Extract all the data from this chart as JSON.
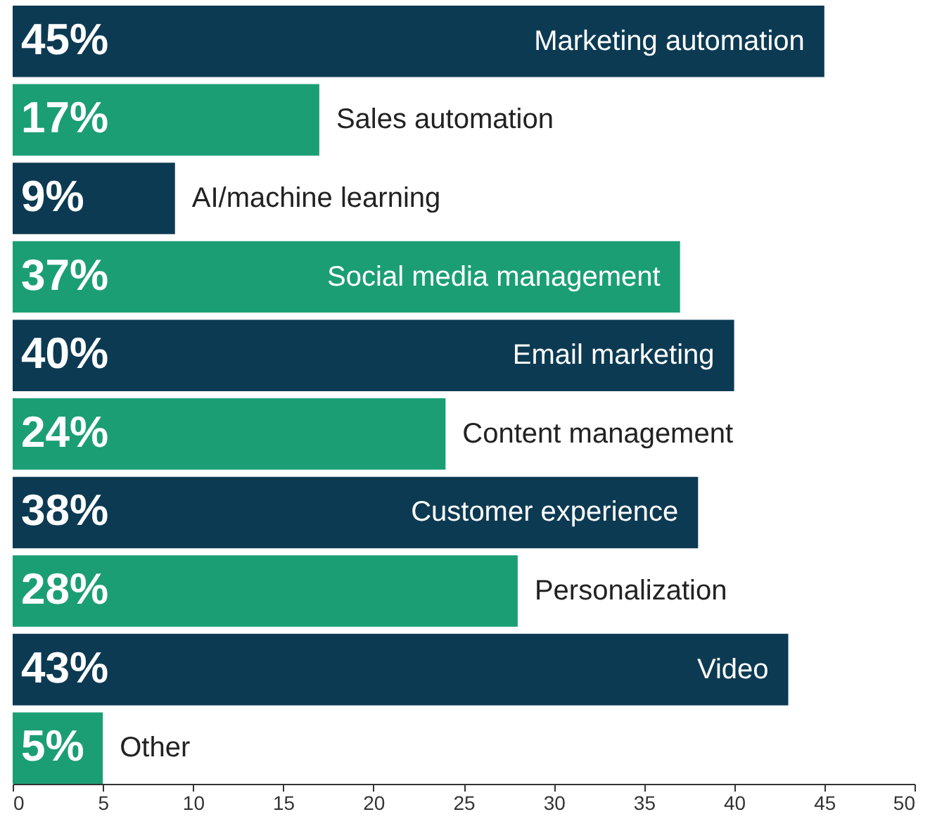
{
  "chart_data": {
    "type": "bar",
    "orientation": "horizontal",
    "categories": [
      "Marketing automation",
      "Sales automation",
      "AI/machine learning",
      "Social media management",
      "Email marketing",
      "Content management",
      "Customer experience",
      "Personalization",
      "Video",
      "Other"
    ],
    "values": [
      45,
      17,
      9,
      37,
      40,
      24,
      38,
      28,
      43,
      5
    ],
    "value_labels": [
      "45%",
      "17%",
      "9%",
      "37%",
      "40%",
      "24%",
      "38%",
      "28%",
      "43%",
      "5%"
    ],
    "colors": [
      "#0c3a52",
      "#1b9e74",
      "#0c3a52",
      "#1b9e74",
      "#0c3a52",
      "#1b9e74",
      "#0c3a52",
      "#1b9e74",
      "#0c3a52",
      "#1b9e74"
    ],
    "xlim": [
      0,
      50
    ],
    "xticks": [
      0,
      5,
      10,
      15,
      20,
      25,
      30,
      35,
      40,
      45,
      50
    ],
    "tick_labels": "x",
    "grid": false
  }
}
